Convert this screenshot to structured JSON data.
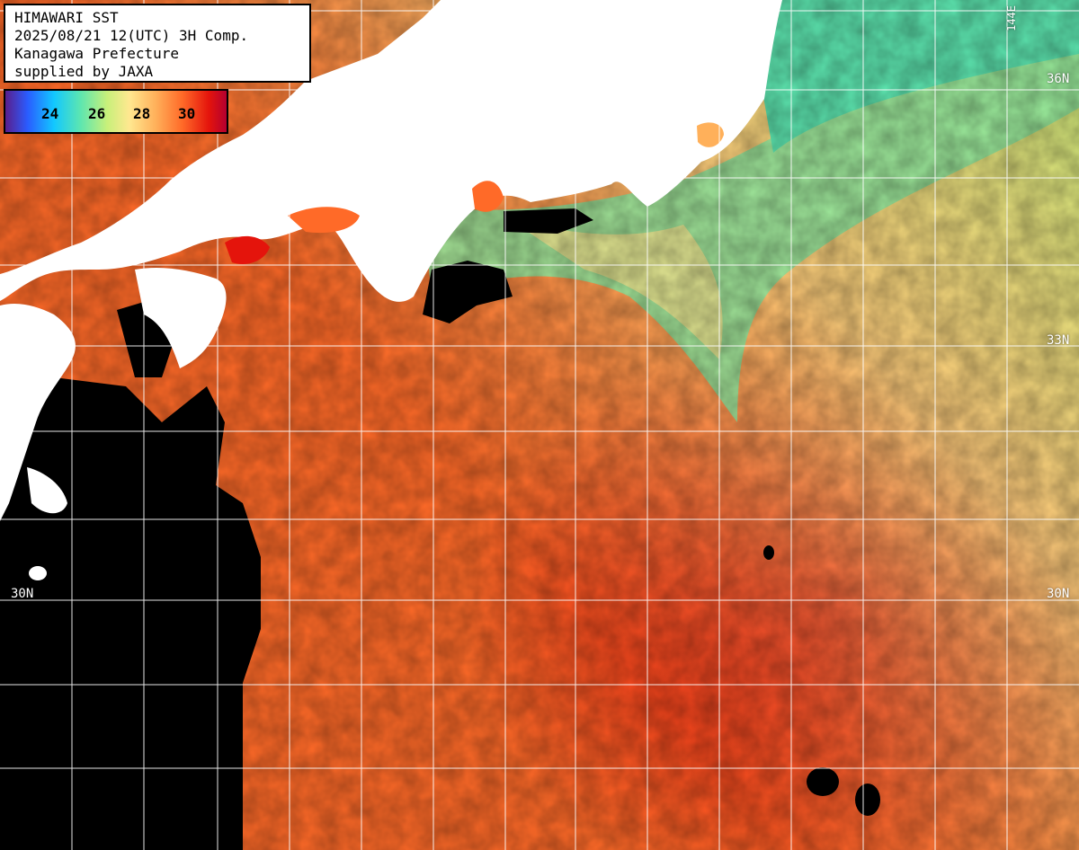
{
  "title": {
    "line1": "HIMAWARI SST",
    "line2": "2025/08/21 12(UTC) 3H Comp.",
    "line3": "Kanagawa Prefecture",
    "line4": "supplied by JAXA"
  },
  "legend": {
    "ticks": [
      "24",
      "26",
      "28",
      "30"
    ],
    "colors": [
      "#5a1e8c",
      "#2a5cff",
      "#12c8ff",
      "#5de6b0",
      "#c8f07a",
      "#ffe890",
      "#ffb05a",
      "#ff6a28",
      "#e4140c",
      "#b40030"
    ]
  },
  "grid_labels": {
    "lat_36": "36N",
    "lat_33": "33N",
    "lat_30_left": "30N",
    "lat_30_right": "30N",
    "lon_144": "144E"
  },
  "colors": {
    "land": "#ffffff",
    "cloud_no_data": "#000000",
    "grid": "#ffffff"
  }
}
